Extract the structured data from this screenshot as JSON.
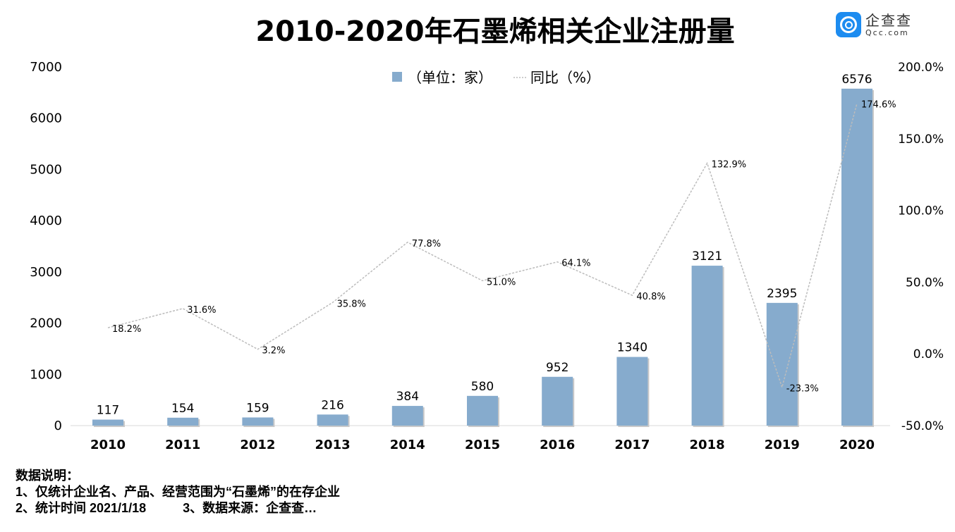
{
  "header": {
    "title": "2010-2020年石墨烯相关企业注册量"
  },
  "logo": {
    "name": "企查查",
    "domain": "Qcc.com"
  },
  "notes": {
    "heading": "数据说明：",
    "line1": "1、仅统计企业名、产品、经营范围为“石墨烯”的在存企业",
    "line2a": "2、统计时间 2021/1/18",
    "line2b": "3、数据来源：企查查…"
  },
  "chart_data": {
    "type": "bar+line",
    "title": "2010-2020年石墨烯相关企业注册量",
    "categories": [
      "2010",
      "2011",
      "2012",
      "2013",
      "2014",
      "2015",
      "2016",
      "2017",
      "2018",
      "2019",
      "2020"
    ],
    "series": [
      {
        "name": "（单位：家）",
        "type": "bar",
        "axis": "left",
        "color": "#86abcd",
        "values": [
          117,
          154,
          159,
          216,
          384,
          580,
          952,
          1340,
          3121,
          2395,
          6576
        ],
        "labels": [
          "117",
          "154",
          "159",
          "216",
          "384",
          "580",
          "952",
          "1340",
          "3121",
          "2395",
          "6576"
        ]
      },
      {
        "name": "同比（%）",
        "type": "line",
        "axis": "right",
        "color": "#c8c8c8",
        "dashed": true,
        "values": [
          18.2,
          31.6,
          3.2,
          35.8,
          77.8,
          51.0,
          64.1,
          40.8,
          132.9,
          -23.3,
          174.6
        ],
        "labels": [
          "18.2%",
          "31.6%",
          "3.2%",
          "35.8%",
          "77.8%",
          "51.0%",
          "64.1%",
          "40.8%",
          "132.9%",
          "-23.3%",
          "174.6%"
        ]
      }
    ],
    "left_axis": {
      "ylim": [
        0,
        7000
      ],
      "ticks": [
        "0",
        "1000",
        "2000",
        "3000",
        "4000",
        "5000",
        "6000",
        "7000"
      ]
    },
    "right_axis": {
      "ylim": [
        -50,
        200
      ],
      "ticks": [
        "-50.0%",
        "0.0%",
        "50.0%",
        "100.0%",
        "150.0%",
        "200.0%"
      ]
    },
    "legend": "top-center",
    "grid": false
  }
}
